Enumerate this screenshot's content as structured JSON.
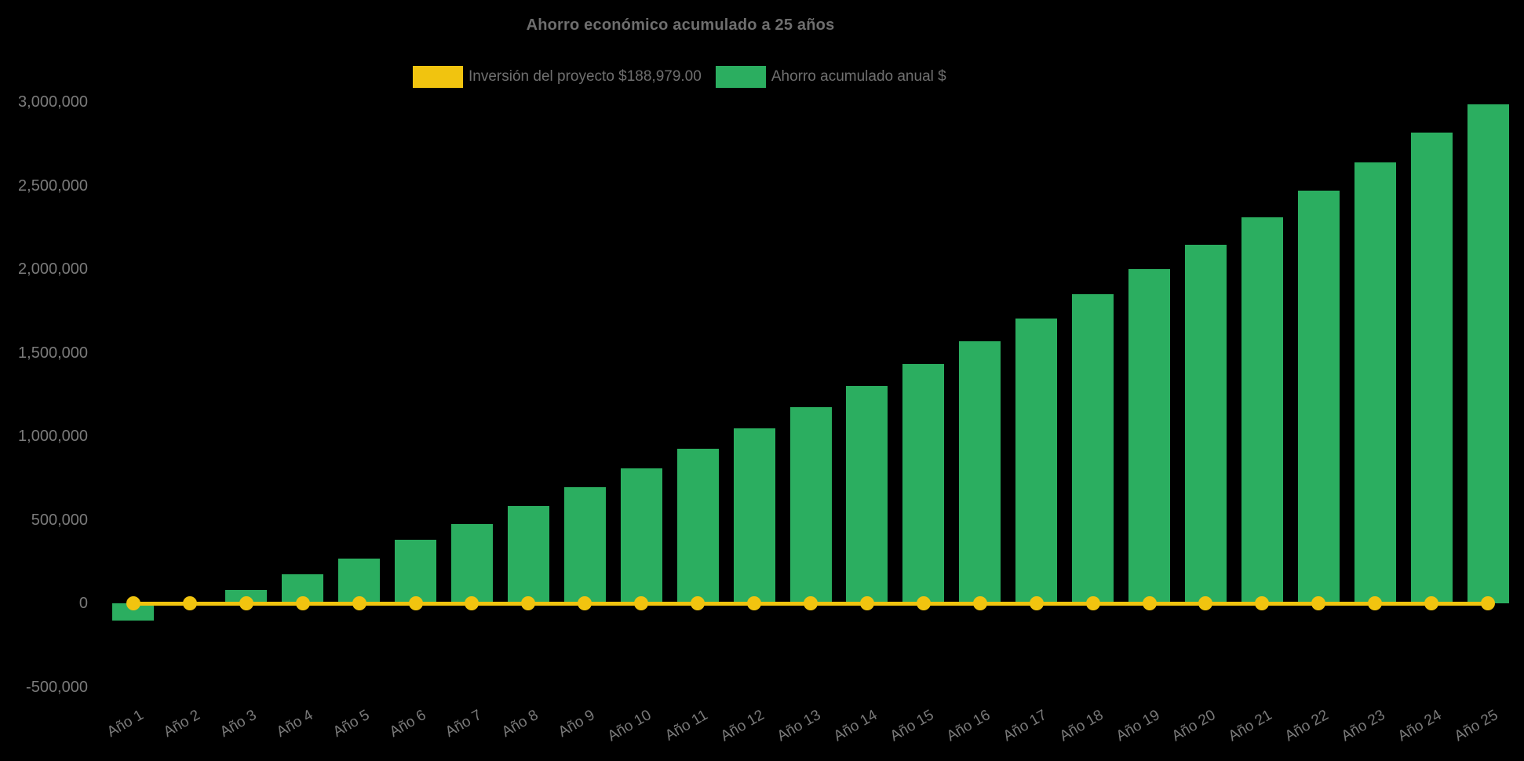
{
  "chart_data": {
    "type": "bar",
    "title": "Ahorro económico acumulado a 25 años",
    "categories": [
      "Año 1",
      "Año 2",
      "Año 3",
      "Año 4",
      "Año 5",
      "Año 6",
      "Año 7",
      "Año 8",
      "Año 9",
      "Año 10",
      "Año 11",
      "Año 12",
      "Año 13",
      "Año 14",
      "Año 15",
      "Año 16",
      "Año 17",
      "Año 18",
      "Año 19",
      "Año 20",
      "Año 21",
      "Año 22",
      "Año 23",
      "Año 24",
      "Año 25"
    ],
    "series": [
      {
        "name": "Inversión del proyecto $188,979.00",
        "type": "line",
        "color": "#f1c40f",
        "value_label": "$188,979.00",
        "values": [
          0,
          0,
          0,
          0,
          0,
          0,
          0,
          0,
          0,
          0,
          0,
          0,
          0,
          0,
          0,
          0,
          0,
          0,
          0,
          0,
          0,
          0,
          0,
          0,
          0
        ]
      },
      {
        "name": "Ahorro acumulado anual $",
        "type": "bar",
        "color": "#2bae60",
        "values": [
          -100000,
          0,
          80000,
          175000,
          270000,
          380000,
          478000,
          585000,
          697000,
          810000,
          927000,
          1048000,
          1175000,
          1300000,
          1432000,
          1568000,
          1705000,
          1850000,
          2000000,
          2145000,
          2310000,
          2470000,
          2640000,
          2818000,
          2986000
        ]
      }
    ],
    "ylim": [
      -500000,
      3000000
    ],
    "yticks": [
      3000000,
      2500000,
      2000000,
      1500000,
      1000000,
      500000,
      0,
      -500000
    ],
    "grid": false,
    "legend_position": "top",
    "x_label_rotation": -30,
    "background_color": "#000000",
    "text_color": "#757575"
  }
}
